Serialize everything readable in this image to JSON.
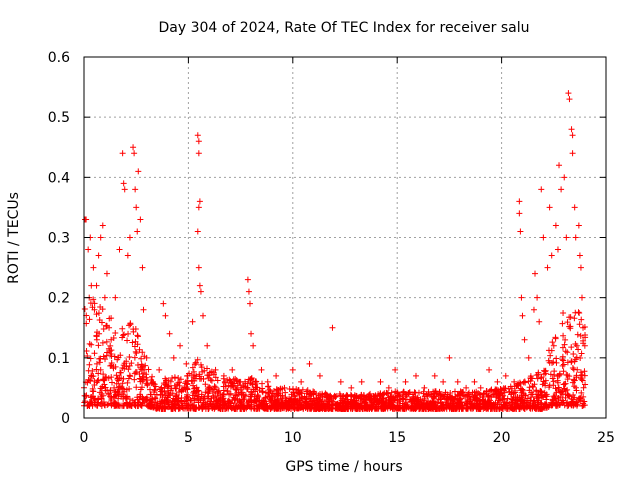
{
  "chart_data": {
    "type": "scatter",
    "title": "Day 304 of 2024, Rate Of TEC Index for receiver salu",
    "xlabel": "GPS time / hours",
    "ylabel": "ROTI / TECUs",
    "xlim": [
      0,
      25
    ],
    "ylim": [
      0,
      0.6
    ],
    "x_ticks": [
      0,
      5,
      10,
      15,
      20,
      25
    ],
    "x_tick_labels": [
      "0",
      "5",
      "10",
      "15",
      "20",
      "25"
    ],
    "y_ticks": [
      0,
      0.1,
      0.2,
      0.3,
      0.4,
      0.5,
      0.6
    ],
    "y_tick_labels": [
      "0",
      "0.1",
      "0.2",
      "0.3",
      "0.4",
      "0.5",
      "0.6"
    ],
    "grid": true,
    "marker": "plus",
    "series": [
      {
        "name": "ROTI",
        "color": "#ff0000",
        "points": [
          [
            0.05,
            0.33
          ],
          [
            0.1,
            0.33
          ],
          [
            0.2,
            0.28
          ],
          [
            0.25,
            0.2
          ],
          [
            0.3,
            0.3
          ],
          [
            0.35,
            0.22
          ],
          [
            0.45,
            0.25
          ],
          [
            0.5,
            0.18
          ],
          [
            0.6,
            0.22
          ],
          [
            0.7,
            0.27
          ],
          [
            0.8,
            0.3
          ],
          [
            0.9,
            0.32
          ],
          [
            1.0,
            0.2
          ],
          [
            1.1,
            0.24
          ],
          [
            1.2,
            0.15
          ],
          [
            1.3,
            0.13
          ],
          [
            1.5,
            0.2
          ],
          [
            1.7,
            0.28
          ],
          [
            1.85,
            0.44
          ],
          [
            1.9,
            0.39
          ],
          [
            1.95,
            0.38
          ],
          [
            2.1,
            0.27
          ],
          [
            2.2,
            0.3
          ],
          [
            2.35,
            0.45
          ],
          [
            2.4,
            0.44
          ],
          [
            2.45,
            0.38
          ],
          [
            2.5,
            0.35
          ],
          [
            2.55,
            0.31
          ],
          [
            2.6,
            0.41
          ],
          [
            2.7,
            0.33
          ],
          [
            2.8,
            0.25
          ],
          [
            2.85,
            0.18
          ],
          [
            3.0,
            0.1
          ],
          [
            3.3,
            0.06
          ],
          [
            3.6,
            0.08
          ],
          [
            3.8,
            0.19
          ],
          [
            3.9,
            0.17
          ],
          [
            4.1,
            0.14
          ],
          [
            4.3,
            0.1
          ],
          [
            4.6,
            0.12
          ],
          [
            4.9,
            0.09
          ],
          [
            5.2,
            0.16
          ],
          [
            5.45,
            0.47
          ],
          [
            5.5,
            0.46
          ],
          [
            5.5,
            0.44
          ],
          [
            5.55,
            0.36
          ],
          [
            5.5,
            0.35
          ],
          [
            5.45,
            0.31
          ],
          [
            5.5,
            0.25
          ],
          [
            5.55,
            0.22
          ],
          [
            5.6,
            0.21
          ],
          [
            5.7,
            0.17
          ],
          [
            5.9,
            0.12
          ],
          [
            6.3,
            0.08
          ],
          [
            6.7,
            0.07
          ],
          [
            7.1,
            0.08
          ],
          [
            7.5,
            0.06
          ],
          [
            7.85,
            0.23
          ],
          [
            7.9,
            0.21
          ],
          [
            7.95,
            0.19
          ],
          [
            8.0,
            0.14
          ],
          [
            8.1,
            0.12
          ],
          [
            8.5,
            0.08
          ],
          [
            8.8,
            0.06
          ],
          [
            9.2,
            0.07
          ],
          [
            9.6,
            0.05
          ],
          [
            10.0,
            0.08
          ],
          [
            10.4,
            0.06
          ],
          [
            10.8,
            0.09
          ],
          [
            11.3,
            0.07
          ],
          [
            11.9,
            0.15
          ],
          [
            12.3,
            0.06
          ],
          [
            12.8,
            0.05
          ],
          [
            13.3,
            0.06
          ],
          [
            13.7,
            0.04
          ],
          [
            14.2,
            0.06
          ],
          [
            14.6,
            0.05
          ],
          [
            14.9,
            0.08
          ],
          [
            15.4,
            0.06
          ],
          [
            15.9,
            0.07
          ],
          [
            16.3,
            0.05
          ],
          [
            16.8,
            0.07
          ],
          [
            17.2,
            0.06
          ],
          [
            17.5,
            0.1
          ],
          [
            17.9,
            0.06
          ],
          [
            18.3,
            0.05
          ],
          [
            18.7,
            0.06
          ],
          [
            19.0,
            0.05
          ],
          [
            19.4,
            0.08
          ],
          [
            19.8,
            0.06
          ],
          [
            20.2,
            0.07
          ],
          [
            20.6,
            0.06
          ],
          [
            20.85,
            0.36
          ],
          [
            20.85,
            0.34
          ],
          [
            20.9,
            0.31
          ],
          [
            20.95,
            0.2
          ],
          [
            21.0,
            0.17
          ],
          [
            21.1,
            0.13
          ],
          [
            21.3,
            0.1
          ],
          [
            21.55,
            0.18
          ],
          [
            21.6,
            0.24
          ],
          [
            21.7,
            0.2
          ],
          [
            21.8,
            0.16
          ],
          [
            21.9,
            0.38
          ],
          [
            22.0,
            0.3
          ],
          [
            22.2,
            0.25
          ],
          [
            22.3,
            0.35
          ],
          [
            22.4,
            0.27
          ],
          [
            22.5,
            0.12
          ],
          [
            22.6,
            0.32
          ],
          [
            22.7,
            0.28
          ],
          [
            22.75,
            0.42
          ],
          [
            22.85,
            0.38
          ],
          [
            23.0,
            0.4
          ],
          [
            23.1,
            0.3
          ],
          [
            23.2,
            0.54
          ],
          [
            23.25,
            0.53
          ],
          [
            23.35,
            0.48
          ],
          [
            23.4,
            0.47
          ],
          [
            23.4,
            0.44
          ],
          [
            23.5,
            0.35
          ],
          [
            23.55,
            0.3
          ],
          [
            23.6,
            0.12
          ],
          [
            23.7,
            0.32
          ],
          [
            23.75,
            0.27
          ],
          [
            23.8,
            0.25
          ],
          [
            23.85,
            0.2
          ],
          [
            23.9,
            0.15
          ]
        ],
        "dense_band": [
          [
            0.0,
            0.02,
            0.2
          ],
          [
            0.5,
            0.02,
            0.2
          ],
          [
            1.0,
            0.02,
            0.18
          ],
          [
            1.5,
            0.02,
            0.16
          ],
          [
            2.0,
            0.02,
            0.17
          ],
          [
            2.5,
            0.02,
            0.15
          ],
          [
            3.0,
            0.02,
            0.09
          ],
          [
            3.5,
            0.015,
            0.05
          ],
          [
            4.0,
            0.015,
            0.07
          ],
          [
            4.5,
            0.015,
            0.07
          ],
          [
            5.0,
            0.015,
            0.08
          ],
          [
            5.5,
            0.015,
            0.1
          ],
          [
            6.0,
            0.015,
            0.08
          ],
          [
            6.5,
            0.015,
            0.07
          ],
          [
            7.0,
            0.015,
            0.07
          ],
          [
            7.5,
            0.015,
            0.06
          ],
          [
            8.0,
            0.015,
            0.07
          ],
          [
            9.0,
            0.015,
            0.05
          ],
          [
            10.0,
            0.015,
            0.05
          ],
          [
            11.0,
            0.015,
            0.045
          ],
          [
            12.0,
            0.015,
            0.04
          ],
          [
            13.0,
            0.015,
            0.04
          ],
          [
            14.0,
            0.015,
            0.04
          ],
          [
            15.0,
            0.015,
            0.045
          ],
          [
            16.0,
            0.015,
            0.045
          ],
          [
            17.0,
            0.015,
            0.045
          ],
          [
            18.0,
            0.015,
            0.045
          ],
          [
            19.0,
            0.015,
            0.045
          ],
          [
            20.0,
            0.015,
            0.05
          ],
          [
            21.0,
            0.015,
            0.06
          ],
          [
            22.0,
            0.015,
            0.09
          ],
          [
            22.5,
            0.02,
            0.14
          ],
          [
            23.0,
            0.02,
            0.18
          ],
          [
            23.5,
            0.02,
            0.18
          ],
          [
            24.0,
            0.02,
            0.17
          ]
        ]
      }
    ]
  }
}
